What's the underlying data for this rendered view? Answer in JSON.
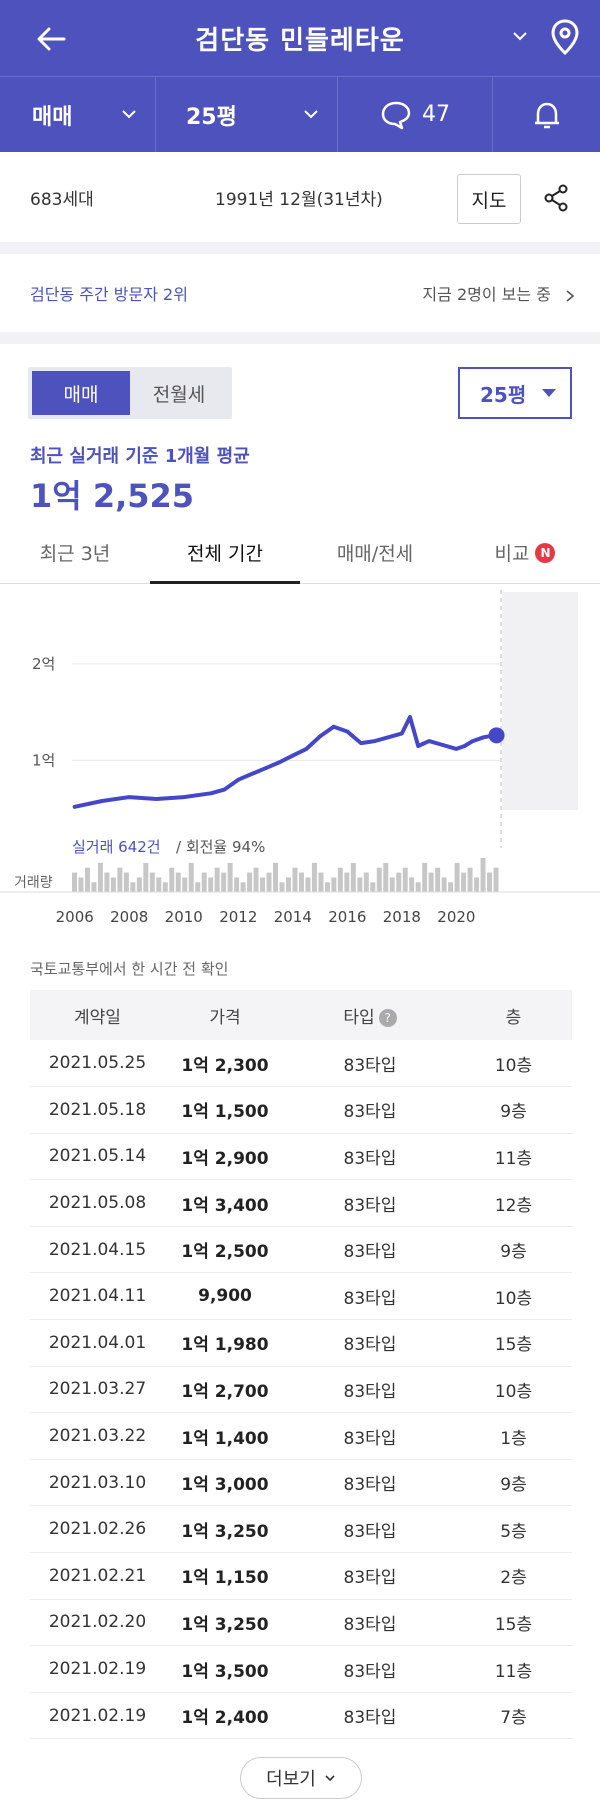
{
  "header": {
    "title": "검단동 민들레타운"
  },
  "subbar": {
    "trade_type": "매매",
    "area": "25평",
    "comments": "47"
  },
  "info": {
    "households": "683세대",
    "built": "1991년 12월(31년차)",
    "map_label": "지도"
  },
  "visitors": {
    "rank": "검단동 주간 방문자 2위",
    "viewing": "지금 2명이 보는 중"
  },
  "price": {
    "seg_sale": "매매",
    "seg_rent": "전월세",
    "area_select": "25평",
    "avg_label": "최근 실거래 기준 1개월 평균",
    "avg_value": "1억 2,525"
  },
  "tabs": [
    {
      "label": "최근 3년"
    },
    {
      "label": "전체 기간"
    },
    {
      "label": "매매/전세"
    },
    {
      "label": "비교"
    }
  ],
  "badge": "N",
  "chart_data": {
    "type": "line",
    "ytick_labels": [
      "2억",
      "1억"
    ],
    "yticks": [
      2.0,
      1.0
    ],
    "x_ticks": [
      "2006",
      "2008",
      "2010",
      "2012",
      "2014",
      "2016",
      "2018",
      "2020"
    ],
    "ylim": [
      0.3,
      2.6
    ],
    "xlim": [
      2005.9,
      2021.6
    ],
    "volume_label": "거래량",
    "stats_trades": "실거래 642건",
    "stats_turnover": "회전율 94%",
    "series": [
      {
        "x": [
          2006,
          2007,
          2008,
          2009,
          2010,
          2010.5,
          2011,
          2011.5,
          2012,
          2012.5,
          2013,
          2013.5,
          2014,
          2014.5,
          2015,
          2015.5,
          2016,
          2016.5,
          2017,
          2017.5,
          2018,
          2018.3,
          2018.6,
          2019,
          2019.5,
          2020,
          2020.3,
          2020.6,
          2021,
          2021.4
        ],
        "values": [
          0.52,
          0.58,
          0.62,
          0.6,
          0.62,
          0.64,
          0.66,
          0.7,
          0.8,
          0.86,
          0.92,
          0.98,
          1.05,
          1.12,
          1.25,
          1.35,
          1.3,
          1.18,
          1.2,
          1.24,
          1.28,
          1.45,
          1.15,
          1.2,
          1.16,
          1.12,
          1.15,
          1.2,
          1.24,
          1.26
        ]
      }
    ],
    "volume": [
      4,
      3,
      5,
      2,
      6,
      4,
      3,
      5,
      4,
      2,
      3,
      6,
      4,
      3,
      2,
      5,
      4,
      3,
      6,
      2,
      4,
      3,
      5,
      4,
      6,
      3,
      2,
      4,
      5,
      3,
      4,
      6,
      2,
      3,
      5,
      4,
      3,
      6,
      4,
      2,
      3,
      5,
      4,
      6,
      3,
      4,
      2,
      5,
      6,
      3,
      4,
      5,
      3,
      2,
      6,
      4,
      5,
      3,
      2,
      6,
      4,
      5,
      3,
      7,
      4,
      5
    ]
  },
  "table": {
    "source": "국토교통부에서 한 시간 전 확인",
    "headers": [
      "계약일",
      "가격",
      "타입",
      "층"
    ],
    "rows": [
      [
        "2021.05.25",
        "1억 2,300",
        "83타입",
        "10층"
      ],
      [
        "2021.05.18",
        "1억 1,500",
        "83타입",
        "9층"
      ],
      [
        "2021.05.14",
        "1억 2,900",
        "83타입",
        "11층"
      ],
      [
        "2021.05.08",
        "1억 3,400",
        "83타입",
        "12층"
      ],
      [
        "2021.04.15",
        "1억 2,500",
        "83타입",
        "9층"
      ],
      [
        "2021.04.11",
        "9,900",
        "83타입",
        "10층"
      ],
      [
        "2021.04.01",
        "1억 1,980",
        "83타입",
        "15층"
      ],
      [
        "2021.03.27",
        "1억 2,700",
        "83타입",
        "10층"
      ],
      [
        "2021.03.22",
        "1억 1,400",
        "83타입",
        "1층"
      ],
      [
        "2021.03.10",
        "1억 3,000",
        "83타입",
        "9층"
      ],
      [
        "2021.02.26",
        "1억 3,250",
        "83타입",
        "5층"
      ],
      [
        "2021.02.21",
        "1억 1,150",
        "83타입",
        "2층"
      ],
      [
        "2021.02.20",
        "1억 3,250",
        "83타입",
        "15층"
      ],
      [
        "2021.02.19",
        "1억 3,500",
        "83타입",
        "11층"
      ],
      [
        "2021.02.19",
        "1억 2,400",
        "83타입",
        "7층"
      ]
    ],
    "more_label": "더보기"
  }
}
